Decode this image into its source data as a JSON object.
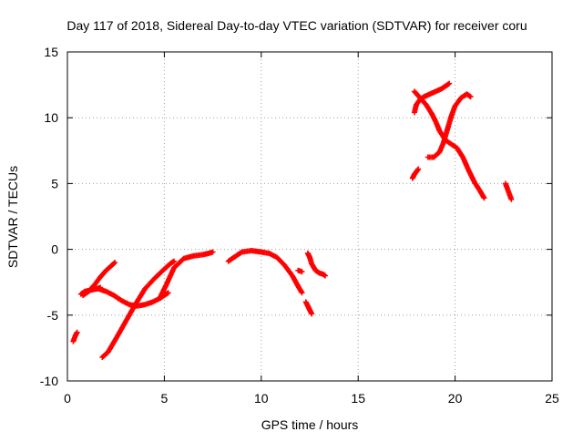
{
  "chart_data": {
    "type": "scatter",
    "title": "Day 117 of 2018, Sidereal Day-to-day VTEC variation (SDTVAR) for receiver coru",
    "xlabel": "GPS time / hours",
    "ylabel": "SDTVAR / TECUs",
    "xlim": [
      0,
      25
    ],
    "ylim": [
      -10,
      15
    ],
    "xticks": [
      0,
      5,
      10,
      15,
      20,
      25
    ],
    "yticks": [
      -10,
      -5,
      0,
      5,
      10,
      15
    ],
    "x_tick_labels": [
      "0",
      "5",
      "10",
      "15",
      "20",
      "25"
    ],
    "y_tick_labels": [
      "-10",
      "-5",
      "0",
      "5",
      "10",
      "15"
    ],
    "grid": true,
    "legend": "none",
    "marker": "+",
    "color": "#ff0000",
    "segments": [
      {
        "x": [
          0.3,
          0.4,
          0.5
        ],
        "y": [
          -7.0,
          -6.6,
          -6.3
        ]
      },
      {
        "x": [
          0.7,
          0.9,
          1.2,
          1.5,
          1.7
        ],
        "y": [
          -3.4,
          -3.2,
          -3.1,
          -3.0,
          -2.9
        ]
      },
      {
        "x": [
          0.8,
          1.1,
          1.4,
          1.7,
          2.0,
          2.3,
          2.45
        ],
        "y": [
          -3.5,
          -3.2,
          -2.7,
          -2.1,
          -1.6,
          -1.2,
          -1.0
        ]
      },
      {
        "x": [
          1.8,
          2.1,
          2.5,
          3.0,
          3.5,
          4.0,
          4.5,
          5.0,
          5.3,
          5.5
        ],
        "y": [
          -8.2,
          -7.8,
          -6.8,
          -5.5,
          -4.2,
          -3.0,
          -2.2,
          -1.5,
          -1.1,
          -0.9
        ]
      },
      {
        "x": [
          1.2,
          1.6,
          2.0,
          2.4,
          2.8,
          3.2,
          3.6,
          4.0,
          4.4,
          4.8,
          5.2
        ],
        "y": [
          -3.0,
          -3.0,
          -3.2,
          -3.5,
          -3.9,
          -4.2,
          -4.3,
          -4.2,
          -4.0,
          -3.7,
          -3.3
        ]
      },
      {
        "x": [
          4.8,
          5.1,
          5.5,
          6.0,
          6.5,
          7.0,
          7.3,
          7.5
        ],
        "y": [
          -3.6,
          -2.7,
          -1.4,
          -0.7,
          -0.5,
          -0.4,
          -0.3,
          -0.2
        ]
      },
      {
        "x": [
          8.3,
          8.6,
          9.0,
          9.5,
          10.0,
          10.4,
          10.8,
          11.2,
          11.6,
          11.9,
          12.1
        ],
        "y": [
          -0.9,
          -0.6,
          -0.2,
          -0.1,
          -0.2,
          -0.3,
          -0.6,
          -1.2,
          -2.0,
          -2.8,
          -3.3
        ]
      },
      {
        "x": [
          11.9,
          12.1
        ],
        "y": [
          -1.6,
          -1.7
        ]
      },
      {
        "x": [
          12.3,
          12.4,
          12.5,
          12.6
        ],
        "y": [
          -4.0,
          -4.3,
          -4.6,
          -4.9
        ]
      },
      {
        "x": [
          12.4,
          12.5,
          12.6,
          12.8,
          13.0,
          13.2,
          13.3
        ],
        "y": [
          -0.3,
          -0.6,
          -1.1,
          -1.6,
          -1.8,
          -1.9,
          -2.0
        ]
      },
      {
        "x": [
          17.8,
          17.9,
          18.0,
          18.1
        ],
        "y": [
          5.4,
          5.7,
          5.9,
          6.1
        ]
      },
      {
        "x": [
          17.9,
          18.0,
          18.2,
          18.4,
          18.7,
          19.0,
          19.3,
          19.5,
          19.7
        ],
        "y": [
          10.4,
          11.0,
          11.4,
          11.6,
          11.8,
          12.0,
          12.2,
          12.4,
          12.6
        ]
      },
      {
        "x": [
          17.9,
          18.2,
          18.5,
          18.8,
          19.0,
          19.2,
          19.5,
          19.8,
          20.1,
          20.4,
          20.7,
          21.0,
          21.3,
          21.5
        ],
        "y": [
          12.0,
          11.5,
          11.0,
          10.3,
          9.7,
          9.0,
          8.3,
          8.0,
          7.7,
          7.0,
          6.0,
          5.1,
          4.4,
          3.9
        ]
      },
      {
        "x": [
          18.6,
          18.9,
          19.2,
          19.4,
          19.6,
          19.8,
          20.0,
          20.3,
          20.6,
          20.8
        ],
        "y": [
          7.0,
          7.0,
          7.4,
          8.1,
          9.1,
          10.1,
          10.9,
          11.5,
          11.8,
          11.6
        ]
      },
      {
        "x": [
          22.6,
          22.7,
          22.8,
          22.9
        ],
        "y": [
          5.0,
          4.6,
          4.2,
          3.8
        ]
      }
    ]
  }
}
